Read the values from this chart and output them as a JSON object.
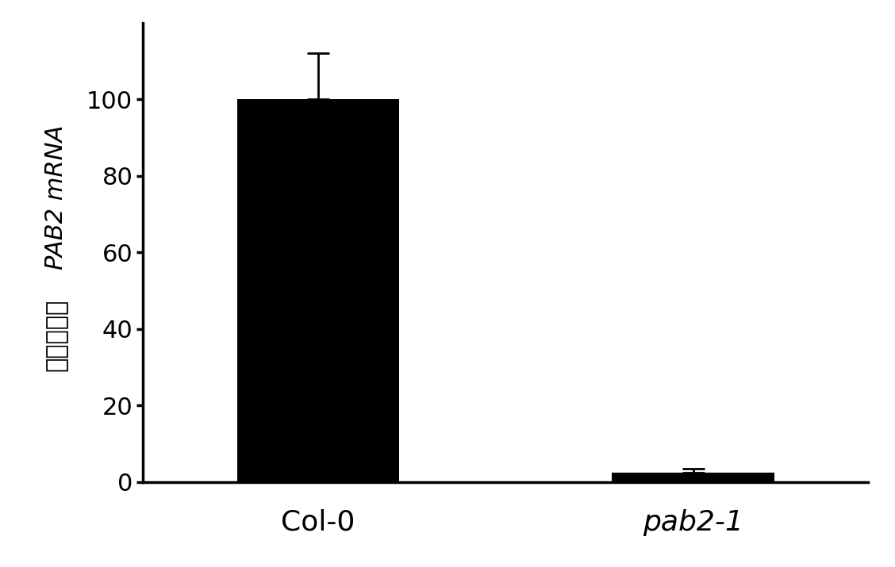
{
  "categories": [
    "Col-0",
    "pab2-1"
  ],
  "values": [
    100,
    2.5
  ],
  "errors": [
    12,
    1.0
  ],
  "bar_color": "#000000",
  "bar_width": 0.65,
  "ylim": [
    0,
    120
  ],
  "yticks": [
    0,
    20,
    40,
    60,
    80,
    100
  ],
  "ylabel_italic": "PAB2 mRNA",
  "ylabel_chinese": "相对表达量",
  "xlabel_texts": [
    "Col-0",
    "pab2-1"
  ],
  "xlabel_styles": [
    "normal",
    "italic"
  ],
  "background_color": "#ffffff",
  "bar_positions": [
    1.0,
    2.5
  ],
  "xlim": [
    0.3,
    3.2
  ],
  "figsize": [
    11.28,
    7.15
  ],
  "dpi": 100,
  "capsize": 10,
  "error_linewidth": 2,
  "axis_linewidth": 2.5,
  "tick_labelsize": 22,
  "xlabel_fontsize": 26,
  "ylabel_fontsize": 22
}
